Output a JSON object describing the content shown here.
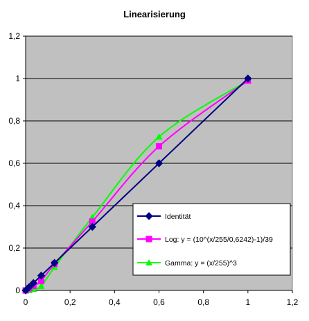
{
  "chart_data": {
    "type": "line",
    "title": "Linearisierung",
    "xlabel": "",
    "ylabel": "",
    "xlim": [
      0,
      1.2
    ],
    "ylim": [
      0,
      1.2
    ],
    "x_ticks": [
      "0",
      "0,2",
      "0,4",
      "0,6",
      "0,8",
      "1",
      "1,2"
    ],
    "y_ticks": [
      "0",
      "0,2",
      "0,4",
      "0,6",
      "0,8",
      "1",
      "1,2"
    ],
    "grid": "horizontal",
    "plot_background": "#c0c0c0",
    "legend_position": "bottom-right",
    "series": [
      {
        "name": "Identität",
        "color": "#000080",
        "marker": "diamond",
        "points": [
          [
            0,
            0
          ],
          [
            0.016,
            0.016
          ],
          [
            0.035,
            0.035
          ],
          [
            0.07,
            0.07
          ],
          [
            0.13,
            0.13
          ],
          [
            0.3,
            0.3
          ],
          [
            0.6,
            0.6
          ],
          [
            1.0,
            1.0
          ]
        ]
      },
      {
        "name": "Log: y = (10^(x/255/0,6242)-1)/39",
        "color": "#ff00ff",
        "marker": "square",
        "points": [
          [
            0,
            0
          ],
          [
            0.016,
            0.01
          ],
          [
            0.035,
            0.022
          ],
          [
            0.07,
            0.045
          ],
          [
            0.13,
            0.125
          ],
          [
            0.3,
            0.325
          ],
          [
            0.6,
            0.68
          ],
          [
            1.0,
            0.99
          ]
        ]
      },
      {
        "name": "Gamma: y = (x/255)^3",
        "color": "#00ff00",
        "marker": "triangle",
        "points": [
          [
            0,
            0
          ],
          [
            0.016,
            0.001
          ],
          [
            0.035,
            0.006
          ],
          [
            0.07,
            0.02
          ],
          [
            0.13,
            0.11
          ],
          [
            0.3,
            0.345
          ],
          [
            0.6,
            0.725
          ],
          [
            1.0,
            0.99
          ]
        ]
      }
    ]
  }
}
